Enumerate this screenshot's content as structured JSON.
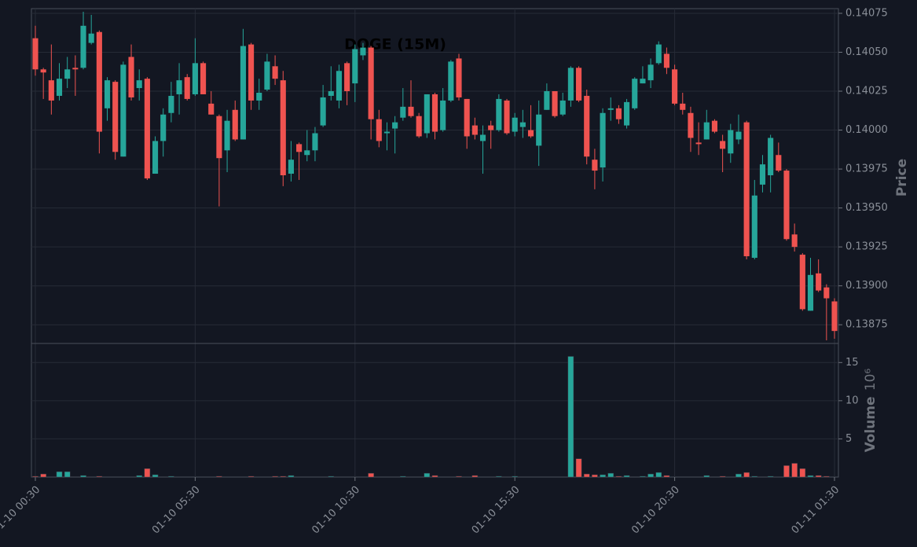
{
  "chart_data": {
    "type": "candlestick",
    "title": "DOGE (15M)",
    "categories": [
      "01-10 00:30",
      null,
      null,
      null,
      null,
      null,
      null,
      null,
      null,
      null,
      null,
      null,
      null,
      null,
      null,
      null,
      null,
      null,
      null,
      null,
      "01-10 05:30",
      null,
      null,
      null,
      null,
      null,
      null,
      null,
      null,
      null,
      null,
      null,
      null,
      null,
      null,
      null,
      null,
      null,
      null,
      null,
      "01-10 10:30",
      null,
      null,
      null,
      null,
      null,
      null,
      null,
      null,
      null,
      null,
      null,
      null,
      null,
      null,
      null,
      null,
      null,
      null,
      null,
      "01-10 15:30",
      null,
      null,
      null,
      null,
      null,
      null,
      null,
      null,
      null,
      null,
      null,
      null,
      null,
      null,
      null,
      null,
      null,
      null,
      null,
      "01-10 20:30",
      null,
      null,
      null,
      null,
      null,
      null,
      null,
      null,
      null,
      null,
      null,
      null,
      null,
      null,
      null,
      null,
      null,
      null,
      null,
      "01-11 01:30"
    ],
    "open": [
      0.14059,
      0.14039,
      0.14032,
      0.14022,
      0.14033,
      0.1404,
      0.1404,
      0.14056,
      0.14063,
      0.14014,
      0.14031,
      0.13983,
      0.14047,
      0.14027,
      0.14033,
      0.13972,
      0.13993,
      0.14011,
      0.14023,
      0.14034,
      0.14023,
      0.14043,
      0.14017,
      0.14009,
      0.13987,
      0.14013,
      0.13994,
      0.14055,
      0.14019,
      0.14026,
      0.14041,
      0.14032,
      0.13972,
      0.13991,
      0.13984,
      0.13987,
      0.14003,
      0.14022,
      0.14019,
      0.14043,
      0.1403,
      0.14048,
      0.14053,
      0.14007,
      0.13998,
      0.14001,
      0.14008,
      0.14015,
      0.14009,
      0.13998,
      0.14023,
      0.14,
      0.14019,
      0.14046,
      0.1402,
      0.14003,
      0.13993,
      0.14003,
      0.14,
      0.14019,
      0.13999,
      0.14002,
      0.14,
      0.1399,
      0.14013,
      0.14025,
      0.1401,
      0.14019,
      0.1404,
      0.14022,
      0.13981,
      0.13976,
      0.14013,
      0.14014,
      0.14003,
      0.14014,
      0.1403,
      0.14032,
      0.14043,
      0.14049,
      0.14039,
      0.14017,
      0.14011,
      0.13992,
      0.13994,
      0.14006,
      0.13993,
      0.13985,
      0.13994,
      0.14005,
      0.13918,
      0.13965,
      0.13971,
      0.13984,
      0.13974,
      0.13933,
      0.1392,
      0.13884,
      0.13908,
      0.13899,
      0.1389
    ],
    "high": [
      0.14067,
      0.1404,
      0.14055,
      0.14043,
      0.14047,
      0.14048,
      0.14076,
      0.14074,
      0.14064,
      0.14034,
      0.14032,
      0.14044,
      0.14055,
      0.14039,
      0.14034,
      0.13996,
      0.14014,
      0.14031,
      0.14043,
      0.14036,
      0.14059,
      0.14044,
      0.14025,
      0.1401,
      0.14013,
      0.14019,
      0.14065,
      0.14056,
      0.14033,
      0.14049,
      0.14048,
      0.14038,
      0.13993,
      0.13992,
      0.14,
      0.14002,
      0.14029,
      0.14041,
      0.14042,
      0.14044,
      0.14055,
      0.14056,
      0.14054,
      0.14013,
      0.14005,
      0.14009,
      0.14027,
      0.14032,
      0.14011,
      0.14023,
      0.14024,
      0.14027,
      0.14045,
      0.14049,
      0.1402,
      0.14008,
      0.14003,
      0.14006,
      0.14023,
      0.1402,
      0.14011,
      0.14013,
      0.14016,
      0.14019,
      0.1403,
      0.14025,
      0.14024,
      0.14041,
      0.14041,
      0.14026,
      0.13988,
      0.14014,
      0.14021,
      0.14016,
      0.1402,
      0.14034,
      0.14041,
      0.14046,
      0.14057,
      0.14053,
      0.14042,
      0.14024,
      0.14015,
      0.14005,
      0.14013,
      0.14007,
      0.13997,
      0.14004,
      0.1401,
      0.14006,
      0.13968,
      0.13984,
      0.13997,
      0.13992,
      0.13975,
      0.1394,
      0.13921,
      0.13918,
      0.13917,
      0.13901,
      0.13892
    ],
    "low": [
      0.14035,
      0.1402,
      0.1401,
      0.14019,
      0.14027,
      0.14022,
      0.14039,
      0.14055,
      0.13985,
      0.14006,
      0.13981,
      0.13983,
      0.14019,
      0.14019,
      0.13968,
      0.13972,
      0.13983,
      0.14005,
      0.1401,
      0.14019,
      0.14022,
      0.14023,
      0.1401,
      0.13951,
      0.13973,
      0.13993,
      0.13994,
      0.14013,
      0.14013,
      0.14025,
      0.14029,
      0.13964,
      0.13967,
      0.13968,
      0.1398,
      0.1398,
      0.14002,
      0.14019,
      0.14014,
      0.14016,
      0.14018,
      0.14045,
      0.13994,
      0.13989,
      0.13987,
      0.13985,
      0.14006,
      0.14008,
      0.13995,
      0.13995,
      0.13994,
      0.13999,
      0.14018,
      0.14019,
      0.13988,
      0.13994,
      0.13972,
      0.13988,
      0.13999,
      0.13997,
      0.13996,
      0.13995,
      0.13995,
      0.13977,
      0.14013,
      0.14008,
      0.14009,
      0.14015,
      0.14018,
      0.13978,
      0.13962,
      0.13967,
      0.14006,
      0.14004,
      0.14001,
      0.14013,
      0.1403,
      0.14027,
      0.14042,
      0.14036,
      0.14016,
      0.1401,
      0.13986,
      0.13984,
      0.13994,
      0.13998,
      0.13973,
      0.13979,
      0.13991,
      0.13917,
      0.13917,
      0.1396,
      0.1396,
      0.13973,
      0.13929,
      0.13922,
      0.13884,
      0.13884,
      0.13896,
      0.13865,
      0.13866
    ],
    "close": [
      0.14039,
      0.14037,
      0.14019,
      0.14033,
      0.14039,
      0.14039,
      0.14067,
      0.14062,
      0.13999,
      0.14032,
      0.13986,
      0.14042,
      0.14021,
      0.14032,
      0.13969,
      0.13993,
      0.1401,
      0.14022,
      0.14032,
      0.1402,
      0.14043,
      0.14023,
      0.1401,
      0.13982,
      0.14006,
      0.13994,
      0.14054,
      0.14019,
      0.14024,
      0.14044,
      0.14033,
      0.13971,
      0.13981,
      0.13986,
      0.13987,
      0.13998,
      0.14021,
      0.14025,
      0.14038,
      0.14025,
      0.14052,
      0.14053,
      0.14007,
      0.13993,
      0.13999,
      0.14005,
      0.14015,
      0.14009,
      0.13996,
      0.14023,
      0.13999,
      0.14019,
      0.14044,
      0.14021,
      0.13996,
      0.13997,
      0.13997,
      0.14,
      0.1402,
      0.13998,
      0.14008,
      0.14005,
      0.13996,
      0.1401,
      0.14025,
      0.14009,
      0.14019,
      0.1404,
      0.14019,
      0.13983,
      0.13974,
      0.14011,
      0.14014,
      0.14007,
      0.14018,
      0.14033,
      0.14033,
      0.14042,
      0.14055,
      0.1404,
      0.14017,
      0.14013,
      0.13995,
      0.13991,
      0.14005,
      0.13999,
      0.13988,
      0.14,
      0.13999,
      0.13919,
      0.13958,
      0.13978,
      0.13995,
      0.13974,
      0.1393,
      0.13925,
      0.13885,
      0.13907,
      0.13897,
      0.13892,
      0.13871
    ],
    "volume": [
      0.1,
      0.4,
      0,
      0.7,
      0.7,
      0,
      0.2,
      0,
      0.1,
      0,
      0,
      0,
      0,
      0.2,
      1.1,
      0.3,
      0,
      0.1,
      0,
      0,
      0,
      0,
      0,
      0.1,
      0,
      0,
      0,
      0.1,
      0,
      0,
      0.1,
      0.1,
      0.2,
      0,
      0,
      0,
      0,
      0.1,
      0,
      0,
      0,
      0,
      0.5,
      0,
      0,
      0,
      0.1,
      0,
      0,
      0.5,
      0.2,
      0,
      0,
      0.1,
      0,
      0.2,
      0,
      0,
      0.1,
      0,
      0.1,
      0,
      0,
      0,
      0,
      0,
      0,
      15.8,
      2.4,
      0.4,
      0.3,
      0.3,
      0.5,
      0.1,
      0.2,
      0,
      0.1,
      0.4,
      0.6,
      0.2,
      0,
      0,
      0,
      0,
      0.2,
      0,
      0.1,
      0,
      0.4,
      0.6,
      0.1,
      0,
      0.1,
      0,
      1.5,
      1.8,
      1.1,
      0.2,
      0.2,
      0.1,
      0
    ],
    "up_color": "#26a69a",
    "down_color": "#ef5350",
    "ylim": [
      0.13863,
      0.14078
    ],
    "yticks": [
      0.13875,
      {
        "value": 0.139,
        "label": "0.13900"
      },
      0.13925,
      {
        "value": 0.1395,
        "label": "0.13950"
      },
      0.13975,
      {
        "value": 0.14,
        "label": "0.14000"
      },
      0.14025,
      {
        "value": 0.1405,
        "label": "0.14050"
      },
      0.14075
    ],
    "ylabel": "Price",
    "volume_ylim": [
      0,
      17.5
    ],
    "volume_yticks": [
      5,
      10,
      15
    ],
    "volume_label": "Volume",
    "volume_scale_label": "10⁶",
    "grid": true
  }
}
